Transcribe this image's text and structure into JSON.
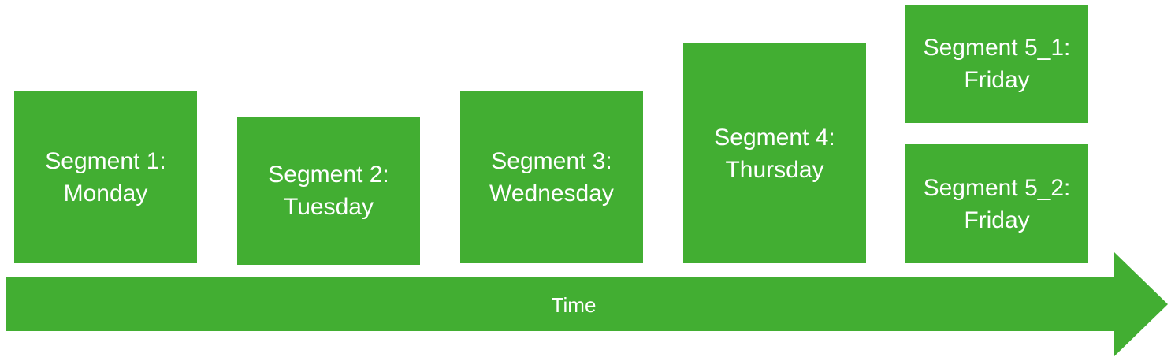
{
  "colors": {
    "green": "#42ae32",
    "text": "#ffffff"
  },
  "segments": [
    {
      "line1": "Segment 1:",
      "line2": "Monday"
    },
    {
      "line1": "Segment 2:",
      "line2": "Tuesday"
    },
    {
      "line1": "Segment 3:",
      "line2": "Wednesday"
    },
    {
      "line1": "Segment 4:",
      "line2": "Thursday"
    },
    {
      "line1": "Segment 5_1:",
      "line2": "Friday"
    },
    {
      "line1": "Segment 5_2:",
      "line2": "Friday"
    }
  ],
  "timeline": {
    "label": "Time"
  }
}
